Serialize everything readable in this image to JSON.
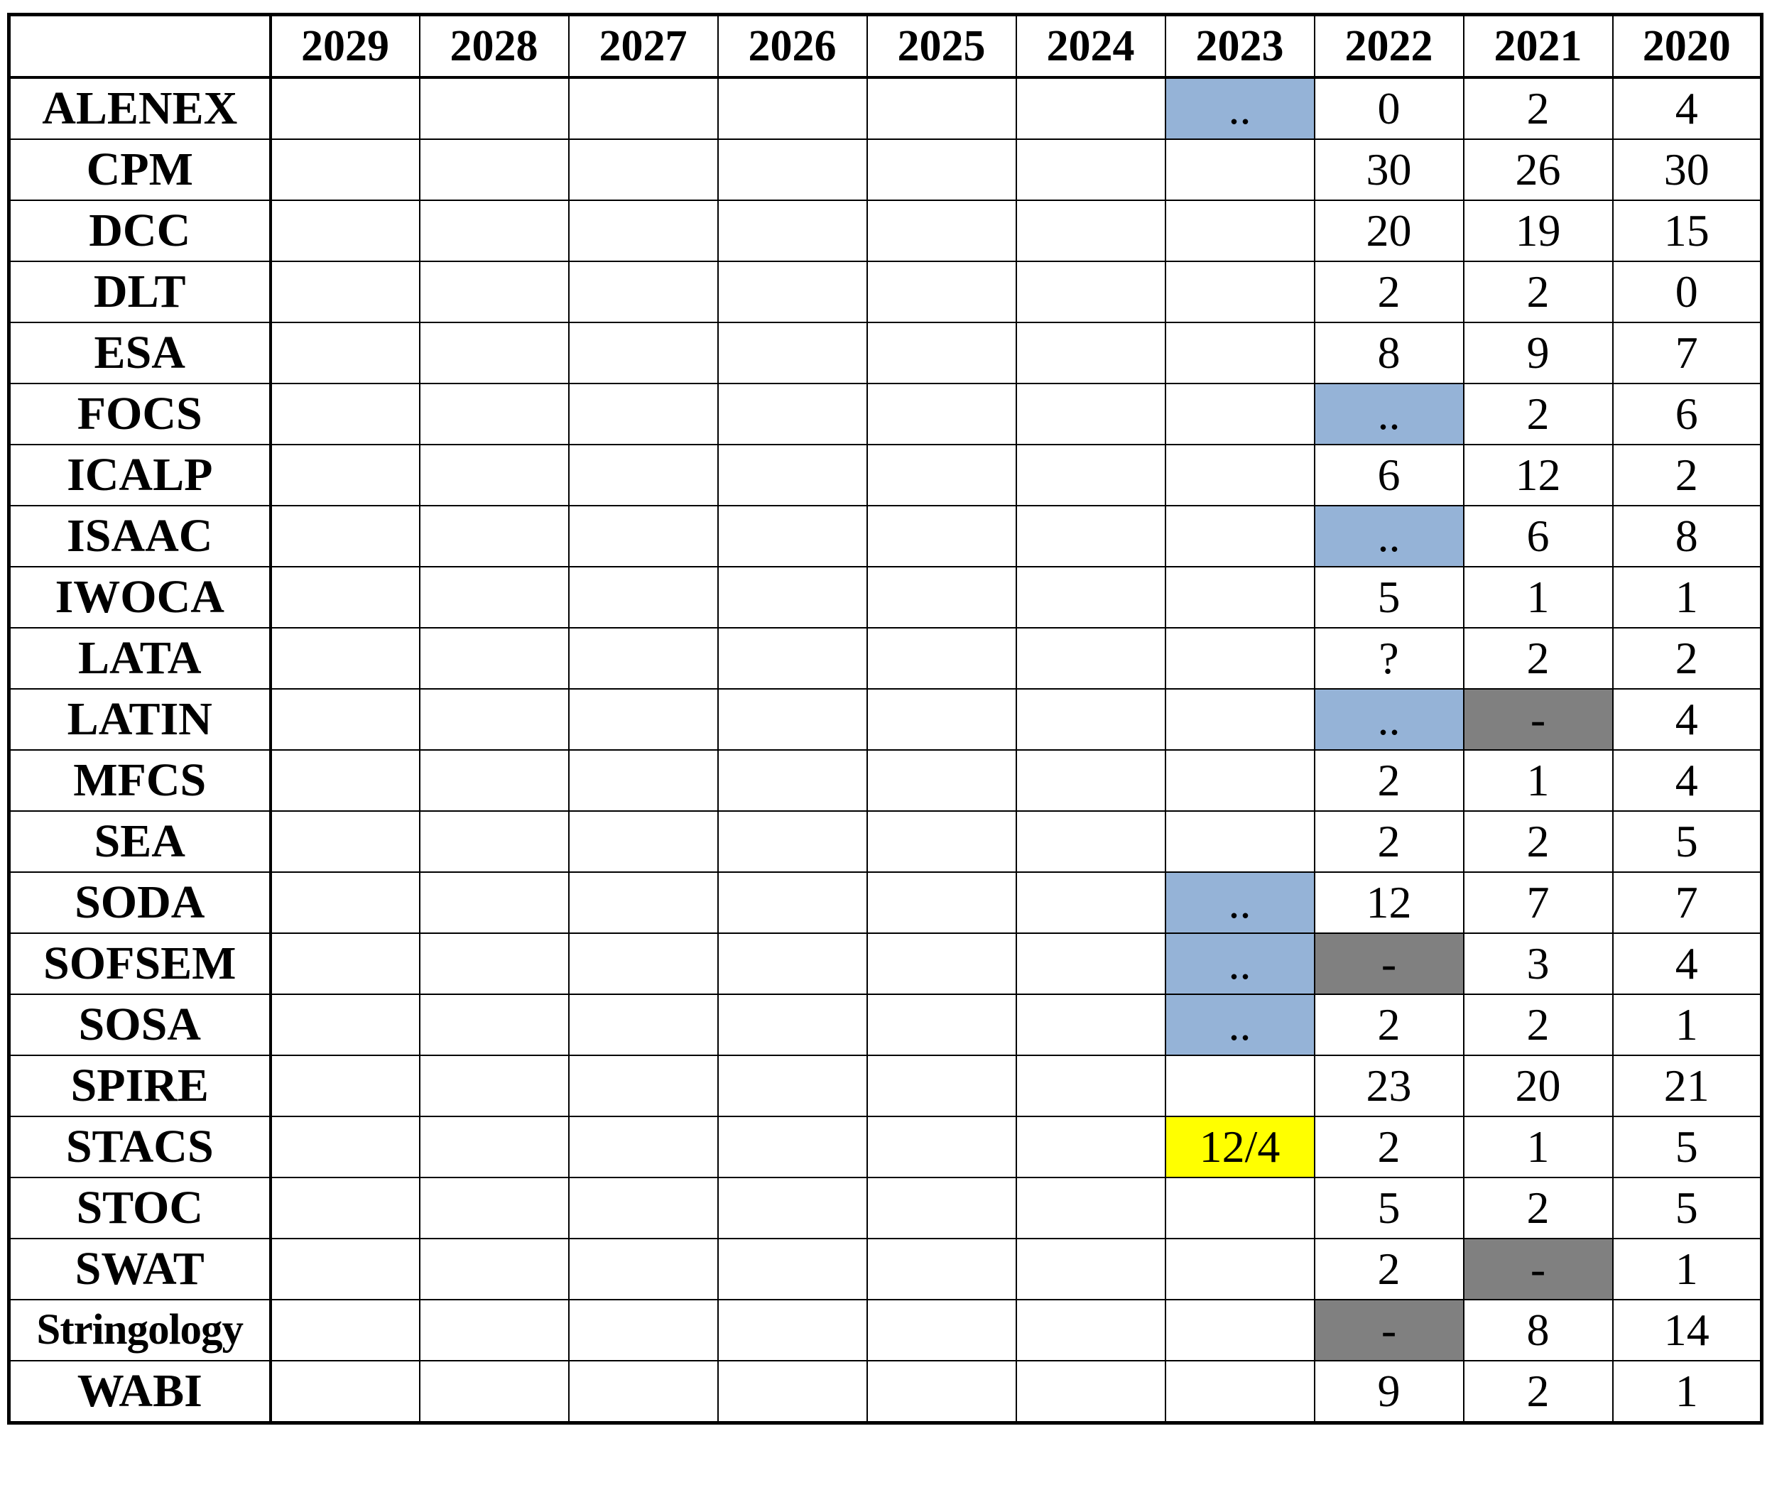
{
  "years": [
    "2029",
    "2028",
    "2027",
    "2026",
    "2025",
    "2024",
    "2023",
    "2022",
    "2021",
    "2020"
  ],
  "status_colors": {
    "pending": "#95b3d7",
    "none": "#808080",
    "highlight": "#ffff00"
  },
  "rows": [
    {
      "name": "ALENEX",
      "cells": [
        "",
        "",
        "",
        "",
        "",
        "",
        "..",
        "0",
        "2",
        "4"
      ]
    },
    {
      "name": "CPM",
      "cells": [
        "",
        "",
        "",
        "",
        "",
        "",
        "",
        "30",
        "26",
        "30"
      ]
    },
    {
      "name": "DCC",
      "cells": [
        "",
        "",
        "",
        "",
        "",
        "",
        "",
        "20",
        "19",
        "15"
      ]
    },
    {
      "name": "DLT",
      "cells": [
        "",
        "",
        "",
        "",
        "",
        "",
        "",
        "2",
        "2",
        "0"
      ]
    },
    {
      "name": "ESA",
      "cells": [
        "",
        "",
        "",
        "",
        "",
        "",
        "",
        "8",
        "9",
        "7"
      ]
    },
    {
      "name": "FOCS",
      "cells": [
        "",
        "",
        "",
        "",
        "",
        "",
        "",
        "..",
        "2",
        "6"
      ]
    },
    {
      "name": "ICALP",
      "cells": [
        "",
        "",
        "",
        "",
        "",
        "",
        "",
        "6",
        "12",
        "2"
      ]
    },
    {
      "name": "ISAAC",
      "cells": [
        "",
        "",
        "",
        "",
        "",
        "",
        "",
        "..",
        "6",
        "8"
      ]
    },
    {
      "name": "IWOCA",
      "cells": [
        "",
        "",
        "",
        "",
        "",
        "",
        "",
        "5",
        "1",
        "1"
      ]
    },
    {
      "name": "LATA",
      "cells": [
        "",
        "",
        "",
        "",
        "",
        "",
        "",
        "?",
        "2",
        "2"
      ]
    },
    {
      "name": "LATIN",
      "cells": [
        "",
        "",
        "",
        "",
        "",
        "",
        "",
        "..",
        "-",
        "4"
      ]
    },
    {
      "name": "MFCS",
      "cells": [
        "",
        "",
        "",
        "",
        "",
        "",
        "",
        "2",
        "1",
        "4"
      ]
    },
    {
      "name": "SEA",
      "cells": [
        "",
        "",
        "",
        "",
        "",
        "",
        "",
        "2",
        "2",
        "5"
      ]
    },
    {
      "name": "SODA",
      "cells": [
        "",
        "",
        "",
        "",
        "",
        "",
        "..",
        "12",
        "7",
        "7"
      ]
    },
    {
      "name": "SOFSEM",
      "cells": [
        "",
        "",
        "",
        "",
        "",
        "",
        "..",
        "-",
        "3",
        "4"
      ]
    },
    {
      "name": "SOSA",
      "cells": [
        "",
        "",
        "",
        "",
        "",
        "",
        "..",
        "2",
        "2",
        "1"
      ]
    },
    {
      "name": "SPIRE",
      "cells": [
        "",
        "",
        "",
        "",
        "",
        "",
        "",
        "23",
        "20",
        "21"
      ]
    },
    {
      "name": "STACS",
      "cells": [
        "",
        "",
        "",
        "",
        "",
        "",
        "12/4",
        "2",
        "1",
        "5"
      ]
    },
    {
      "name": "STOC",
      "cells": [
        "",
        "",
        "",
        "",
        "",
        "",
        "",
        "5",
        "2",
        "5"
      ]
    },
    {
      "name": "SWAT",
      "cells": [
        "",
        "",
        "",
        "",
        "",
        "",
        "",
        "2",
        "-",
        "1"
      ]
    },
    {
      "name": "Stringology",
      "cells": [
        "",
        "",
        "",
        "",
        "",
        "",
        "",
        "-",
        "8",
        "14"
      ]
    },
    {
      "name": "WABI",
      "cells": [
        "",
        "",
        "",
        "",
        "",
        "",
        "",
        "9",
        "2",
        "1"
      ]
    }
  ]
}
